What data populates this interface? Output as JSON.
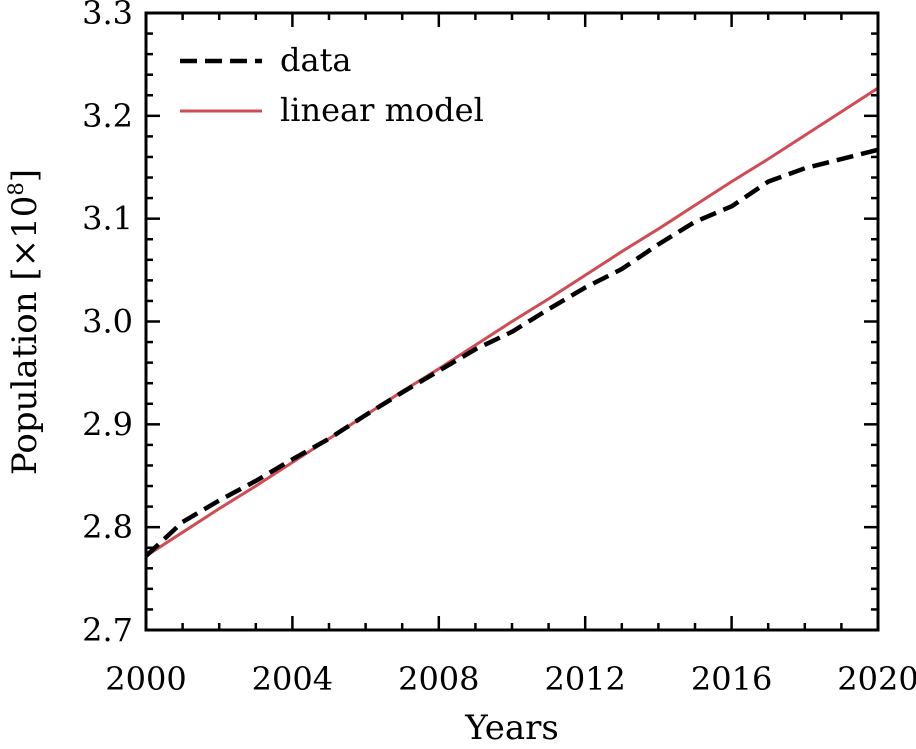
{
  "chart_data": {
    "type": "line",
    "xlabel": "Years",
    "ylabel": "Population [×10",
    "ylabel_exponent": "8",
    "ylabel_suffix": "]",
    "xlim": [
      2000,
      2020
    ],
    "ylim": [
      2.7,
      3.3
    ],
    "grid": false,
    "legend_position": "top-left",
    "x_ticks": [
      2000,
      2004,
      2008,
      2012,
      2016,
      2020
    ],
    "x_tick_labels": [
      "2000",
      "2004",
      "2008",
      "2012",
      "2016",
      "2020"
    ],
    "y_ticks": [
      2.7,
      2.8,
      2.9,
      3.0,
      3.1,
      3.2,
      3.3
    ],
    "y_tick_labels": [
      "2.7",
      "2.8",
      "2.9",
      "3.0",
      "3.1",
      "3.2",
      "3.3"
    ],
    "x": [
      2000,
      2001,
      2002,
      2003,
      2004,
      2005,
      2006,
      2007,
      2008,
      2009,
      2010,
      2011,
      2012,
      2013,
      2014,
      2015,
      2016,
      2017,
      2018,
      2019,
      2020
    ],
    "series": [
      {
        "name": "data",
        "style": "dashed",
        "color": "#000000",
        "values": [
          2.772,
          2.805,
          2.826,
          2.845,
          2.866,
          2.886,
          2.909,
          2.931,
          2.952,
          2.973,
          2.99,
          3.012,
          3.033,
          3.051,
          3.075,
          3.097,
          3.112,
          3.136,
          3.149,
          3.158,
          3.167
        ]
      },
      {
        "name": "linear model",
        "style": "solid",
        "color": "#d14b55",
        "values": [
          2.772,
          2.795,
          2.818,
          2.84,
          2.863,
          2.886,
          2.909,
          2.932,
          2.954,
          2.977,
          3.0,
          3.022,
          3.045,
          3.068,
          3.09,
          3.113,
          3.136,
          3.158,
          3.181,
          3.204,
          3.227
        ]
      }
    ]
  }
}
